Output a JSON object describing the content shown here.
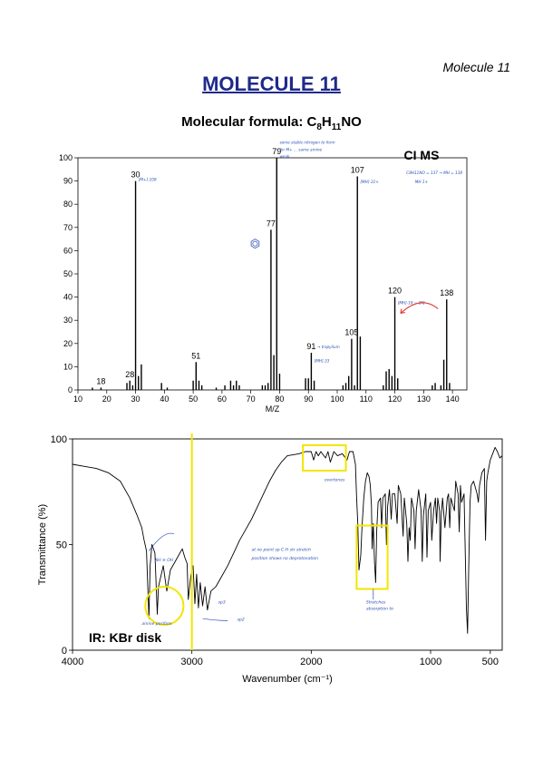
{
  "page": {
    "corner_label": "Molecule 11",
    "title": "MOLECULE 11",
    "formula": {
      "prefix": "Molecular formula: C",
      "c_count": "8",
      "h_label": "H",
      "h_count": "11",
      "suffix": "NO"
    }
  },
  "chart_data": [
    {
      "type": "bar",
      "label": "CI MS",
      "xlabel": "M/Z",
      "ylabel": "",
      "xlim": [
        10,
        145
      ],
      "ylim": [
        0,
        100
      ],
      "x_ticks": [
        10,
        20,
        30,
        40,
        50,
        60,
        70,
        80,
        90,
        100,
        110,
        120,
        130,
        140
      ],
      "y_ticks": [
        0,
        10,
        20,
        30,
        40,
        50,
        60,
        70,
        80,
        90,
        100
      ],
      "peaks": [
        [
          15,
          1
        ],
        [
          18,
          1
        ],
        [
          27,
          3
        ],
        [
          28,
          4
        ],
        [
          29,
          2
        ],
        [
          30,
          90
        ],
        [
          31,
          6
        ],
        [
          32,
          11
        ],
        [
          39,
          3
        ],
        [
          41,
          1
        ],
        [
          50,
          4
        ],
        [
          51,
          12
        ],
        [
          52,
          4
        ],
        [
          53,
          2
        ],
        [
          58,
          1
        ],
        [
          61,
          2
        ],
        [
          63,
          4
        ],
        [
          64,
          2
        ],
        [
          65,
          4
        ],
        [
          66,
          2
        ],
        [
          74,
          2
        ],
        [
          75,
          2
        ],
        [
          76,
          3
        ],
        [
          77,
          69
        ],
        [
          78,
          15
        ],
        [
          79,
          100
        ],
        [
          80,
          7
        ],
        [
          89,
          5
        ],
        [
          90,
          5
        ],
        [
          91,
          16
        ],
        [
          92,
          4
        ],
        [
          102,
          2
        ],
        [
          103,
          3
        ],
        [
          104,
          6
        ],
        [
          105,
          22
        ],
        [
          106,
          2
        ],
        [
          107,
          92
        ],
        [
          108,
          23
        ],
        [
          116,
          2
        ],
        [
          117,
          8
        ],
        [
          118,
          9
        ],
        [
          119,
          6
        ],
        [
          120,
          40
        ],
        [
          121,
          5
        ],
        [
          133,
          2
        ],
        [
          134,
          3
        ],
        [
          136,
          2
        ],
        [
          137,
          13
        ],
        [
          138,
          39
        ],
        [
          139,
          3
        ]
      ],
      "peak_labels": [
        {
          "x": 18,
          "y": 1,
          "text": "18"
        },
        {
          "x": 28,
          "y": 4,
          "text": "28"
        },
        {
          "x": 30,
          "y": 90,
          "text": "30"
        },
        {
          "x": 51,
          "y": 12,
          "text": "51"
        },
        {
          "x": 77,
          "y": 69,
          "text": "77"
        },
        {
          "x": 79,
          "y": 100,
          "text": "79"
        },
        {
          "x": 91,
          "y": 16,
          "text": "91"
        },
        {
          "x": 105,
          "y": 22,
          "text": "105"
        },
        {
          "x": 107,
          "y": 92,
          "text": "107"
        },
        {
          "x": 120,
          "y": 40,
          "text": "120"
        },
        {
          "x": 138,
          "y": 39,
          "text": "138"
        }
      ],
      "annotations": [
        {
          "x": 31,
          "y": 90,
          "text": "[M+]-108"
        },
        {
          "x": 108,
          "y": 89,
          "text": "[MH]-31+"
        },
        {
          "x": 93,
          "y": 18,
          "text": "→ tropylium"
        },
        {
          "x": 92,
          "y": 12,
          "text": "[MH]-33"
        },
        {
          "x": 121,
          "y": 37,
          "text": "[MH]-18 = [M]"
        },
        {
          "x": 80,
          "y": 106,
          "text": "some stable nitrogen to form"
        },
        {
          "x": 80,
          "y": 103,
          "text": "for M+ ... same amine"
        },
        {
          "x": 80,
          "y": 100,
          "text": "weak"
        },
        {
          "x": 124,
          "y": 93,
          "text": "C8H11NO = 137 → MH = 138"
        },
        {
          "x": 127,
          "y": 89,
          "text": "MH 1+"
        }
      ]
    },
    {
      "type": "line",
      "label": "IR: KBr disk",
      "xlabel": "Wavenumber (cm⁻¹)",
      "ylabel": "Transmittance (%)",
      "xlim": [
        4000,
        400
      ],
      "ylim": [
        0,
        100
      ],
      "x_ticks": [
        4000,
        3000,
        2000,
        1000,
        500
      ],
      "y_ticks": [
        0,
        50,
        100
      ],
      "points": [
        [
          4000,
          88
        ],
        [
          3900,
          87
        ],
        [
          3800,
          86
        ],
        [
          3700,
          84
        ],
        [
          3600,
          80
        ],
        [
          3520,
          72
        ],
        [
          3460,
          64
        ],
        [
          3420,
          58
        ],
        [
          3400,
          52
        ],
        [
          3380,
          47
        ],
        [
          3360,
          15
        ],
        [
          3350,
          40
        ],
        [
          3335,
          50
        ],
        [
          3310,
          46
        ],
        [
          3290,
          17
        ],
        [
          3280,
          30
        ],
        [
          3240,
          40
        ],
        [
          3210,
          28
        ],
        [
          3180,
          38
        ],
        [
          3120,
          44
        ],
        [
          3080,
          48
        ],
        [
          3060,
          44
        ],
        [
          3040,
          41
        ],
        [
          3030,
          24
        ],
        [
          3010,
          35
        ],
        [
          2990,
          40
        ],
        [
          2975,
          22
        ],
        [
          2960,
          36
        ],
        [
          2945,
          20
        ],
        [
          2930,
          32
        ],
        [
          2910,
          21
        ],
        [
          2890,
          30
        ],
        [
          2870,
          19
        ],
        [
          2840,
          28
        ],
        [
          2800,
          30
        ],
        [
          2750,
          35
        ],
        [
          2700,
          40
        ],
        [
          2650,
          46
        ],
        [
          2600,
          52
        ],
        [
          2550,
          57
        ],
        [
          2500,
          62
        ],
        [
          2450,
          68
        ],
        [
          2400,
          74
        ],
        [
          2350,
          80
        ],
        [
          2300,
          85
        ],
        [
          2250,
          89
        ],
        [
          2200,
          92
        ],
        [
          2100,
          93
        ],
        [
          2050,
          94
        ],
        [
          2000,
          94
        ],
        [
          1980,
          90
        ],
        [
          1960,
          94
        ],
        [
          1940,
          92
        ],
        [
          1920,
          94
        ],
        [
          1880,
          91
        ],
        [
          1860,
          94
        ],
        [
          1840,
          89
        ],
        [
          1810,
          94
        ],
        [
          1780,
          92
        ],
        [
          1740,
          93
        ],
        [
          1700,
          90
        ],
        [
          1680,
          94
        ],
        [
          1650,
          94
        ],
        [
          1630,
          88
        ],
        [
          1620,
          72
        ],
        [
          1610,
          60
        ],
        [
          1600,
          38
        ],
        [
          1585,
          45
        ],
        [
          1575,
          58
        ],
        [
          1560,
          72
        ],
        [
          1545,
          80
        ],
        [
          1530,
          84
        ],
        [
          1515,
          82
        ],
        [
          1505,
          78
        ],
        [
          1495,
          68
        ],
        [
          1490,
          48
        ],
        [
          1480,
          60
        ],
        [
          1470,
          42
        ],
        [
          1460,
          32
        ],
        [
          1452,
          56
        ],
        [
          1440,
          70
        ],
        [
          1420,
          72
        ],
        [
          1410,
          58
        ],
        [
          1400,
          72
        ],
        [
          1380,
          74
        ],
        [
          1370,
          50
        ],
        [
          1360,
          68
        ],
        [
          1345,
          76
        ],
        [
          1330,
          62
        ],
        [
          1320,
          74
        ],
        [
          1300,
          74
        ],
        [
          1280,
          60
        ],
        [
          1270,
          78
        ],
        [
          1250,
          74
        ],
        [
          1230,
          54
        ],
        [
          1220,
          72
        ],
        [
          1200,
          60
        ],
        [
          1190,
          42
        ],
        [
          1180,
          58
        ],
        [
          1170,
          52
        ],
        [
          1160,
          72
        ],
        [
          1140,
          66
        ],
        [
          1130,
          48
        ],
        [
          1120,
          66
        ],
        [
          1100,
          76
        ],
        [
          1080,
          66
        ],
        [
          1070,
          42
        ],
        [
          1060,
          64
        ],
        [
          1040,
          74
        ],
        [
          1030,
          44
        ],
        [
          1020,
          66
        ],
        [
          1000,
          70
        ],
        [
          990,
          52
        ],
        [
          975,
          66
        ],
        [
          960,
          72
        ],
        [
          950,
          60
        ],
        [
          940,
          72
        ],
        [
          925,
          66
        ],
        [
          920,
          42
        ],
        [
          910,
          64
        ],
        [
          900,
          72
        ],
        [
          880,
          58
        ],
        [
          860,
          72
        ],
        [
          850,
          74
        ],
        [
          840,
          58
        ],
        [
          830,
          72
        ],
        [
          800,
          66
        ],
        [
          790,
          80
        ],
        [
          770,
          74
        ],
        [
          760,
          56
        ],
        [
          750,
          78
        ],
        [
          740,
          70
        ],
        [
          720,
          74
        ],
        [
          700,
          20
        ],
        [
          690,
          8
        ],
        [
          680,
          40
        ],
        [
          670,
          70
        ],
        [
          660,
          78
        ],
        [
          640,
          80
        ],
        [
          610,
          74
        ],
        [
          600,
          70
        ],
        [
          590,
          78
        ],
        [
          570,
          84
        ],
        [
          550,
          86
        ],
        [
          540,
          52
        ],
        [
          530,
          80
        ],
        [
          520,
          84
        ],
        [
          500,
          90
        ],
        [
          480,
          93
        ],
        [
          460,
          96
        ],
        [
          440,
          94
        ],
        [
          420,
          91
        ],
        [
          400,
          92
        ]
      ],
      "highlight_line": 3000,
      "annotations": [
        {
          "x": 3310,
          "y": 42,
          "text": "NH ≡ OH"
        },
        {
          "x": 2780,
          "y": 22,
          "text": "sp3"
        },
        {
          "x": 2620,
          "y": 14,
          "text": "sp2"
        },
        {
          "x": 3420,
          "y": 12,
          "text": "amine position"
        },
        {
          "x": 2500,
          "y": 47,
          "text": "at no point sp C-H str stretch"
        },
        {
          "x": 2500,
          "y": 43,
          "text": "position shows no deprotonation"
        },
        {
          "x": 1890,
          "y": 80,
          "text": "overtones"
        },
        {
          "x": 1540,
          "y": 22,
          "text": "Stretches"
        },
        {
          "x": 1540,
          "y": 19,
          "text": "absorption to"
        }
      ],
      "boxes": [
        {
          "x0": 2070,
          "x1": 1710,
          "y0": 85,
          "y1": 97
        },
        {
          "x0": 1620,
          "x1": 1360,
          "y0": 29,
          "y1": 59
        }
      ],
      "circle": {
        "cx": 3230,
        "cy": 21,
        "r_wavenumber": 160
      }
    }
  ],
  "colors": {
    "title": "#1f2a8a",
    "annotation": "#2a4fb5",
    "highlight": "#f2e600",
    "arrow": "#e0382b"
  }
}
